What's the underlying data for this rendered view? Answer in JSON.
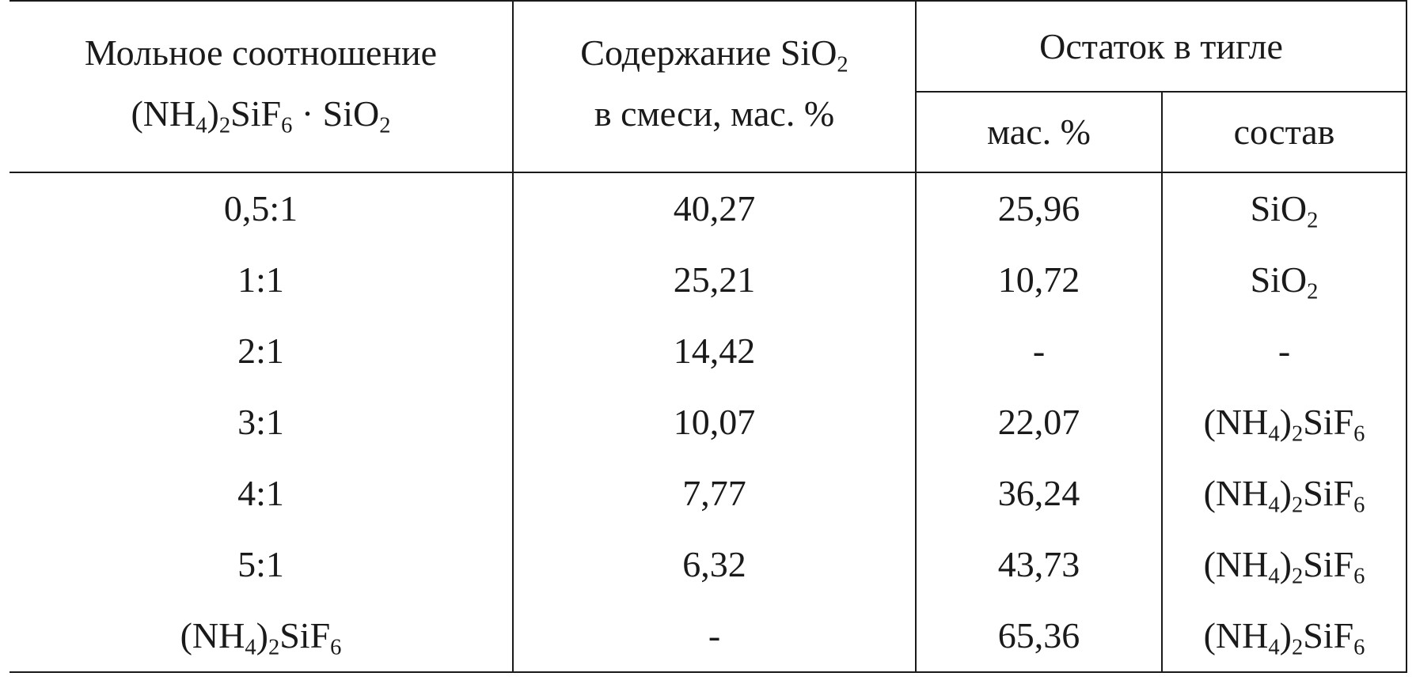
{
  "table": {
    "headers": {
      "col1_line1": "Мольное соотношение",
      "col1_line2": {
        "p1": "(NH",
        "s1": "4",
        "p2": ")",
        "s2": "2",
        "p3": "SiF",
        "s3": "6",
        "p4": " · SiO",
        "s4": "2"
      },
      "col2_line1": {
        "p1": "Содержание SiO",
        "s1": "2"
      },
      "col2_line2": "в смеси, мас. %",
      "group": "Остаток в тигле",
      "sub_mass": "мас. %",
      "sub_composition": "состав"
    },
    "rows": [
      {
        "ratio": "0,5:1",
        "sio2": "40,27",
        "residue": "25,96",
        "composition": "SiO2"
      },
      {
        "ratio": "1:1",
        "sio2": "25,21",
        "residue": "10,72",
        "composition": "SiO2"
      },
      {
        "ratio": "2:1",
        "sio2": "14,42",
        "residue": "-",
        "composition": "-"
      },
      {
        "ratio": "3:1",
        "sio2": "10,07",
        "residue": "22,07",
        "composition": "(NH4)2SiF6"
      },
      {
        "ratio": "4:1",
        "sio2": "7,77",
        "residue": "36,24",
        "composition": "(NH4)2SiF6"
      },
      {
        "ratio": "5:1",
        "sio2": "6,32",
        "residue": "43,73",
        "composition": "(NH4)2SiF6"
      },
      {
        "ratio": "(NH4)2SiF6",
        "sio2": "-",
        "residue": "65,36",
        "composition": "(NH4)2SiF6"
      }
    ]
  }
}
